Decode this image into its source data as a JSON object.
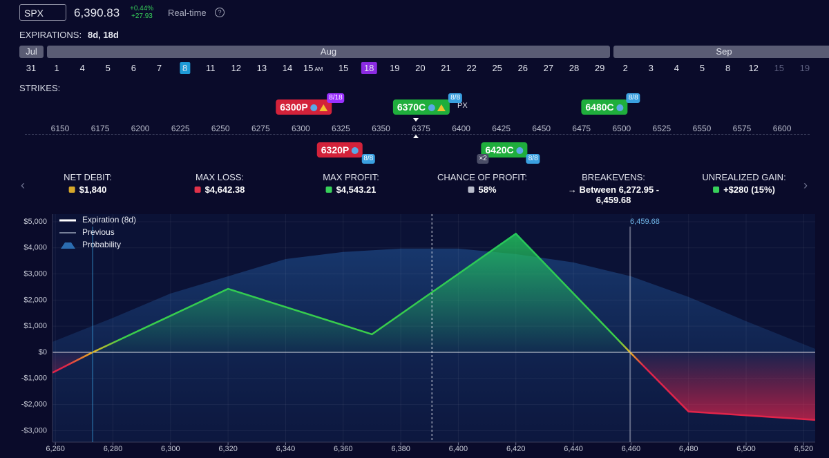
{
  "header": {
    "ticker": "SPX",
    "price": "6,390.83",
    "change_pct": "+0.44%",
    "change": "+27.93",
    "mode": "Real-time",
    "help": "?"
  },
  "expirations": {
    "label": "EXPIRATIONS:",
    "value": "8d, 18d"
  },
  "calendar": {
    "months": [
      "Jul",
      "Aug",
      "Sep"
    ],
    "days": [
      {
        "label": "31"
      },
      {
        "label": "1"
      },
      {
        "label": "4"
      },
      {
        "label": "5"
      },
      {
        "label": "6"
      },
      {
        "label": "7"
      },
      {
        "label": "8",
        "color": "#1e9bd7"
      },
      {
        "label": "11"
      },
      {
        "label": "12"
      },
      {
        "label": "13"
      },
      {
        "label": "14"
      },
      {
        "label": "15",
        "sub": "AM"
      },
      {
        "label": "15"
      },
      {
        "label": "18",
        "color": "#8b2be2"
      },
      {
        "label": "19"
      },
      {
        "label": "20"
      },
      {
        "label": "21"
      },
      {
        "label": "22"
      },
      {
        "label": "25"
      },
      {
        "label": "26"
      },
      {
        "label": "27"
      },
      {
        "label": "28"
      },
      {
        "label": "29"
      },
      {
        "label": "2"
      },
      {
        "label": "3"
      },
      {
        "label": "4"
      },
      {
        "label": "5"
      },
      {
        "label": "8"
      },
      {
        "label": "12"
      },
      {
        "label": "15",
        "faded": true
      },
      {
        "label": "19",
        "faded": true
      }
    ]
  },
  "strikes": {
    "label": "STRIKES:",
    "ticks": [
      6150,
      6175,
      6200,
      6225,
      6250,
      6275,
      6300,
      6325,
      6350,
      6375,
      6400,
      6425,
      6450,
      6475,
      6500,
      6525,
      6550,
      6575,
      6600
    ],
    "spot_label": "PX",
    "legs": [
      {
        "label": "6300P",
        "tag": "8/18",
        "color": "#d3223a",
        "tag_color": "#9b30ff",
        "warn": true
      },
      {
        "label": "6370C",
        "tag": "8/8",
        "color": "#1fae3c",
        "tag_color": "#3aa0e0",
        "warn": true
      },
      {
        "label": "6480C",
        "tag": "8/8",
        "color": "#1fae3c",
        "tag_color": "#3aa0e0"
      },
      {
        "label": "6320P",
        "tag": "8/8",
        "color": "#d3223a",
        "tag_color": "#3aa0e0"
      },
      {
        "label": "6420C",
        "tag": "8/8",
        "color": "#1fae3c",
        "tag_color": "#3aa0e0",
        "qty": "×2"
      }
    ]
  },
  "stats": [
    {
      "label": "NET DEBIT:",
      "value": "$1,840"
    },
    {
      "label": "MAX LOSS:",
      "value": "$4,642.38"
    },
    {
      "label": "MAX PROFIT:",
      "value": "$4,543.21"
    },
    {
      "label": "CHANCE OF PROFIT:",
      "value": "58%"
    },
    {
      "label": "BREAKEVENS:",
      "value": "→ Between 6,272.95 -",
      "value2": "6,459.68"
    },
    {
      "label": "UNREALIZED GAIN:",
      "value": "+$280 (15%)"
    }
  ],
  "chart_data": {
    "type": "line",
    "xlim": [
      6259,
      6524
    ],
    "ylim": [
      -3440,
      5290
    ],
    "xticks": [
      {
        "value": 6260,
        "label": "6,260"
      },
      {
        "value": 6280,
        "label": "6,280"
      },
      {
        "value": 6300,
        "label": "6,300"
      },
      {
        "value": 6320,
        "label": "6,320"
      },
      {
        "value": 6340,
        "label": "6,340"
      },
      {
        "value": 6360,
        "label": "6,360"
      },
      {
        "value": 6380,
        "label": "6,380"
      },
      {
        "value": 6400,
        "label": "6,400"
      },
      {
        "value": 6420,
        "label": "6,420"
      },
      {
        "value": 6440,
        "label": "6,440"
      },
      {
        "value": 6460,
        "label": "6,460"
      },
      {
        "value": 6480,
        "label": "6,480"
      },
      {
        "value": 6500,
        "label": "6,500"
      },
      {
        "value": 6520,
        "label": "6,520"
      }
    ],
    "yticks": [
      {
        "value": 5000,
        "label": "$5,000"
      },
      {
        "value": 4000,
        "label": "$4,000"
      },
      {
        "value": 3000,
        "label": "$3,000"
      },
      {
        "value": 2000,
        "label": "$2,000"
      },
      {
        "value": 1000,
        "label": "$1,000"
      },
      {
        "value": 0,
        "label": "$0"
      },
      {
        "value": -1000,
        "label": "-$1,000"
      },
      {
        "value": -2000,
        "label": "-$2,000"
      },
      {
        "value": -3000,
        "label": "-$3,000"
      }
    ],
    "grid": true,
    "spot": 6390.83,
    "vlines": [
      {
        "x": 6272.95,
        "color": "#3aa0e0"
      },
      {
        "x": 6459.68,
        "label": "6,459.68",
        "color": "#cfd3e0"
      }
    ],
    "series": [
      {
        "name": "Expiration (8d)",
        "color": "#22c55e",
        "x": [
          6259,
          6272.95,
          6320,
          6370,
          6420,
          6459.68,
          6480,
          6524
        ],
        "values": [
          -780,
          0,
          2430,
          690,
          4543.21,
          0,
          -2270,
          -2590
        ]
      },
      {
        "name": "Previous",
        "color": "#9aa3b8",
        "x": [],
        "values": []
      },
      {
        "name": "Probability",
        "color": "#2b6cb0",
        "x": [
          6259,
          6280,
          6300,
          6320,
          6340,
          6360,
          6380,
          6400,
          6420,
          6440,
          6460,
          6480,
          6500,
          6524
        ],
        "values": [
          400,
          1320,
          2250,
          2910,
          3570,
          3840,
          3970,
          3970,
          3760,
          3440,
          2910,
          2120,
          1190,
          130
        ]
      }
    ]
  }
}
